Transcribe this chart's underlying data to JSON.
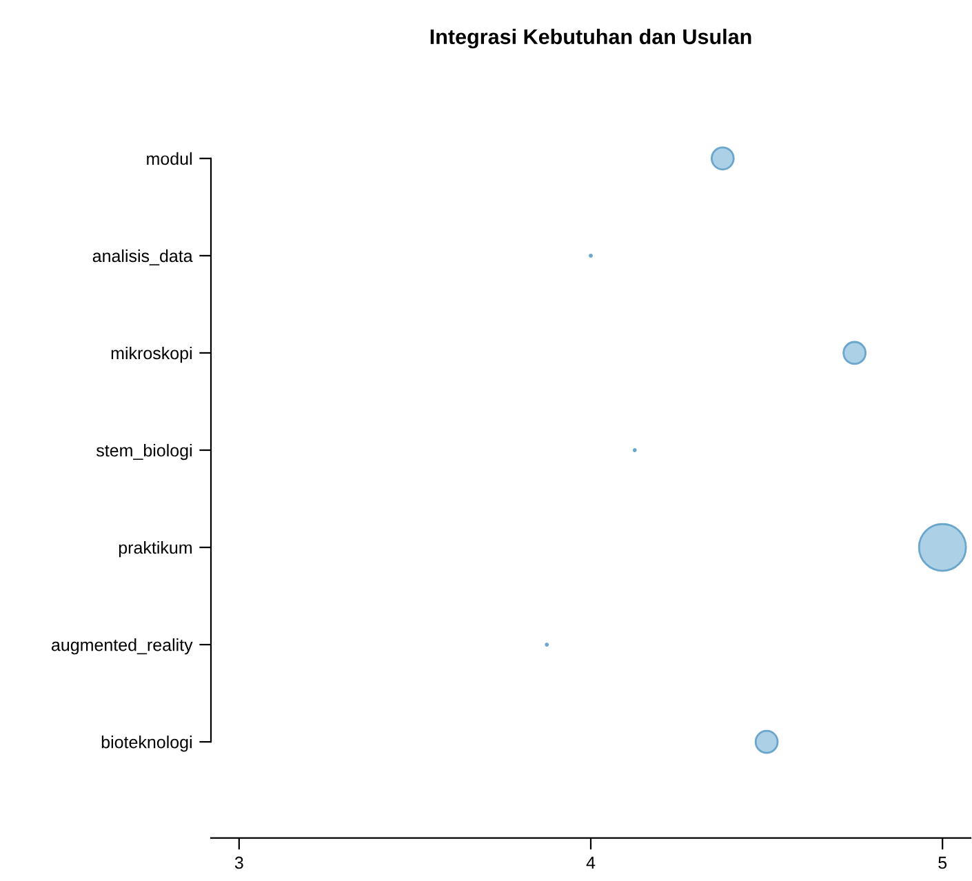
{
  "chart_data": {
    "type": "bubble",
    "title": "Integrasi Kebutuhan dan Usulan",
    "orientation": "horizontal",
    "categories": [
      "modul",
      "analisis_data",
      "mikroskopi",
      "stem_biologi",
      "praktikum",
      "augmented_reality",
      "bioteknologi"
    ],
    "values": [
      4.375,
      4.0,
      4.75,
      4.125,
      5.0,
      3.875,
      4.5
    ],
    "sizes": [
      0.22,
      0.002,
      0.22,
      0.002,
      1,
      0.002,
      0.22
    ],
    "color": "#a3cbe2",
    "xlim": [
      2.92,
      5.08
    ],
    "xticks": [
      3,
      4,
      5
    ],
    "grid": false
  }
}
